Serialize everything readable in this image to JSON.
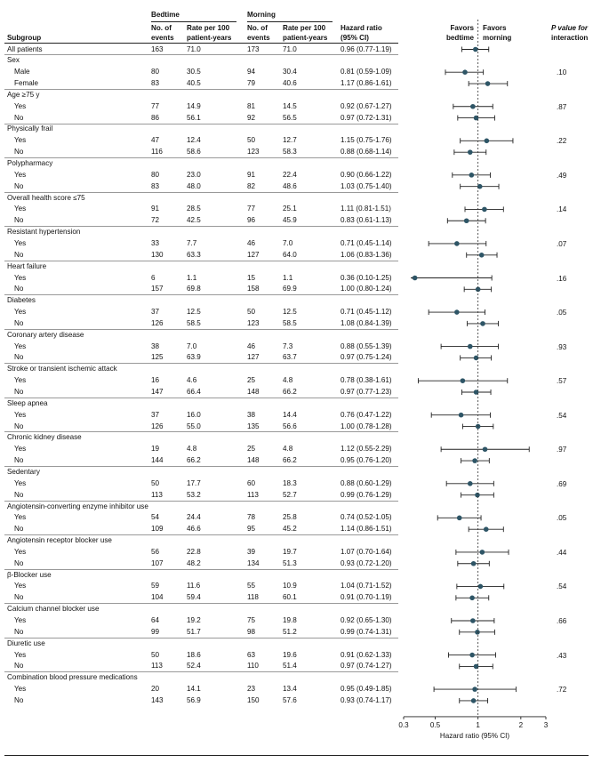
{
  "headers": {
    "bedtime": "Bedtime",
    "morning": "Morning",
    "subgroup": "Subgroup",
    "events_line1": "No. of",
    "events_line2": "events",
    "rate_line1": "Rate per 100",
    "rate_line2": "patient-years",
    "hr_line1": "Hazard ratio",
    "hr_line2": "(95% CI)",
    "favors_bedtime_line1": "Favors",
    "favors_bedtime_line2": "bedtime",
    "favors_morning_line1": "Favors",
    "favors_morning_line2": "morning",
    "p_line1": "P value for",
    "p_line2": "interaction"
  },
  "chart_data": {
    "type": "forest",
    "xlabel": "Hazard ratio (95% CI)",
    "xscale": "log",
    "xlim": [
      0.3,
      3
    ],
    "xticks": [
      "0.3",
      "0.5",
      "1",
      "2",
      "3"
    ],
    "xtick_values": [
      0.3,
      0.5,
      1,
      2,
      3
    ],
    "reference_line": 1,
    "point_color": "#2e5566",
    "rows": [
      {
        "kind": "row",
        "label": "All patients",
        "b_events": "163",
        "b_rate": "71.0",
        "m_events": "173",
        "m_rate": "71.0",
        "hr_text": "0.96 (0.77-1.19)",
        "hr": 0.96,
        "lo": 0.77,
        "hi": 1.19
      },
      {
        "kind": "group",
        "label": "Sex",
        "p": ".10"
      },
      {
        "kind": "row",
        "label": "Male",
        "b_events": "80",
        "b_rate": "30.5",
        "m_events": "94",
        "m_rate": "30.4",
        "hr_text": "0.81 (0.59-1.09)",
        "hr": 0.81,
        "lo": 0.59,
        "hi": 1.09
      },
      {
        "kind": "row",
        "label": "Female",
        "b_events": "83",
        "b_rate": "40.5",
        "m_events": "79",
        "m_rate": "40.6",
        "hr_text": "1.17 (0.86-1.61)",
        "hr": 1.17,
        "lo": 0.86,
        "hi": 1.61
      },
      {
        "kind": "group",
        "label": "Age ≥75 y",
        "p": ".87"
      },
      {
        "kind": "row",
        "label": "Yes",
        "b_events": "77",
        "b_rate": "14.9",
        "m_events": "81",
        "m_rate": "14.5",
        "hr_text": "0.92 (0.67-1.27)",
        "hr": 0.92,
        "lo": 0.67,
        "hi": 1.27
      },
      {
        "kind": "row",
        "label": "No",
        "b_events": "86",
        "b_rate": "56.1",
        "m_events": "92",
        "m_rate": "56.5",
        "hr_text": "0.97 (0.72-1.31)",
        "hr": 0.97,
        "lo": 0.72,
        "hi": 1.31
      },
      {
        "kind": "group",
        "label": "Physically frail",
        "p": ".22"
      },
      {
        "kind": "row",
        "label": "Yes",
        "b_events": "47",
        "b_rate": "12.4",
        "m_events": "50",
        "m_rate": "12.7",
        "hr_text": "1.15 (0.75-1.76)",
        "hr": 1.15,
        "lo": 0.75,
        "hi": 1.76
      },
      {
        "kind": "row",
        "label": "No",
        "b_events": "116",
        "b_rate": "58.6",
        "m_events": "123",
        "m_rate": "58.3",
        "hr_text": "0.88 (0.68-1.14)",
        "hr": 0.88,
        "lo": 0.68,
        "hi": 1.14
      },
      {
        "kind": "group",
        "label": "Polypharmacy",
        "p": ".49"
      },
      {
        "kind": "row",
        "label": "Yes",
        "b_events": "80",
        "b_rate": "23.0",
        "m_events": "91",
        "m_rate": "22.4",
        "hr_text": "0.90 (0.66-1.22)",
        "hr": 0.9,
        "lo": 0.66,
        "hi": 1.22
      },
      {
        "kind": "row",
        "label": "No",
        "b_events": "83",
        "b_rate": "48.0",
        "m_events": "82",
        "m_rate": "48.6",
        "hr_text": "1.03 (0.75-1.40)",
        "hr": 1.03,
        "lo": 0.75,
        "hi": 1.4
      },
      {
        "kind": "group",
        "label": "Overall health score ≤75",
        "p": ".14"
      },
      {
        "kind": "row",
        "label": "Yes",
        "b_events": "91",
        "b_rate": "28.5",
        "m_events": "77",
        "m_rate": "25.1",
        "hr_text": "1.11 (0.81-1.51)",
        "hr": 1.11,
        "lo": 0.81,
        "hi": 1.51
      },
      {
        "kind": "row",
        "label": "No",
        "b_events": "72",
        "b_rate": "42.5",
        "m_events": "96",
        "m_rate": "45.9",
        "hr_text": "0.83 (0.61-1.13)",
        "hr": 0.83,
        "lo": 0.61,
        "hi": 1.13
      },
      {
        "kind": "group",
        "label": "Resistant hypertension",
        "p": ".07"
      },
      {
        "kind": "row",
        "label": "Yes",
        "b_events": "33",
        "b_rate": "7.7",
        "m_events": "46",
        "m_rate": "7.0",
        "hr_text": "0.71 (0.45-1.14)",
        "hr": 0.71,
        "lo": 0.45,
        "hi": 1.14
      },
      {
        "kind": "row",
        "label": "No",
        "b_events": "130",
        "b_rate": "63.3",
        "m_events": "127",
        "m_rate": "64.0",
        "hr_text": "1.06 (0.83-1.36)",
        "hr": 1.06,
        "lo": 0.83,
        "hi": 1.36
      },
      {
        "kind": "group",
        "label": "Heart failure",
        "p": ".16"
      },
      {
        "kind": "row",
        "label": "Yes",
        "b_events": "6",
        "b_rate": "1.1",
        "m_events": "15",
        "m_rate": "1.1",
        "hr_text": "0.36 (0.10-1.25)",
        "hr": 0.36,
        "lo": 0.1,
        "hi": 1.25
      },
      {
        "kind": "row",
        "label": "No",
        "b_events": "157",
        "b_rate": "69.8",
        "m_events": "158",
        "m_rate": "69.9",
        "hr_text": "1.00 (0.80-1.24)",
        "hr": 1.0,
        "lo": 0.8,
        "hi": 1.24
      },
      {
        "kind": "group",
        "label": "Diabetes",
        "p": ".05"
      },
      {
        "kind": "row",
        "label": "Yes",
        "b_events": "37",
        "b_rate": "12.5",
        "m_events": "50",
        "m_rate": "12.5",
        "hr_text": "0.71 (0.45-1.12)",
        "hr": 0.71,
        "lo": 0.45,
        "hi": 1.12
      },
      {
        "kind": "row",
        "label": "No",
        "b_events": "126",
        "b_rate": "58.5",
        "m_events": "123",
        "m_rate": "58.5",
        "hr_text": "1.08 (0.84-1.39)",
        "hr": 1.08,
        "lo": 0.84,
        "hi": 1.39
      },
      {
        "kind": "group",
        "label": "Coronary artery disease",
        "p": ".93"
      },
      {
        "kind": "row",
        "label": "Yes",
        "b_events": "38",
        "b_rate": "7.0",
        "m_events": "46",
        "m_rate": "7.3",
        "hr_text": "0.88 (0.55-1.39)",
        "hr": 0.88,
        "lo": 0.55,
        "hi": 1.39
      },
      {
        "kind": "row",
        "label": "No",
        "b_events": "125",
        "b_rate": "63.9",
        "m_events": "127",
        "m_rate": "63.7",
        "hr_text": "0.97 (0.75-1.24)",
        "hr": 0.97,
        "lo": 0.75,
        "hi": 1.24
      },
      {
        "kind": "group",
        "label": "Stroke or transient ischemic attack",
        "p": ".57"
      },
      {
        "kind": "row",
        "label": "Yes",
        "b_events": "16",
        "b_rate": "4.6",
        "m_events": "25",
        "m_rate": "4.8",
        "hr_text": "0.78 (0.38-1.61)",
        "hr": 0.78,
        "lo": 0.38,
        "hi": 1.61
      },
      {
        "kind": "row",
        "label": "No",
        "b_events": "147",
        "b_rate": "66.4",
        "m_events": "148",
        "m_rate": "66.2",
        "hr_text": "0.97 (0.77-1.23)",
        "hr": 0.97,
        "lo": 0.77,
        "hi": 1.23
      },
      {
        "kind": "group",
        "label": "Sleep apnea",
        "p": ".54"
      },
      {
        "kind": "row",
        "label": "Yes",
        "b_events": "37",
        "b_rate": "16.0",
        "m_events": "38",
        "m_rate": "14.4",
        "hr_text": "0.76 (0.47-1.22)",
        "hr": 0.76,
        "lo": 0.47,
        "hi": 1.22
      },
      {
        "kind": "row",
        "label": "No",
        "b_events": "126",
        "b_rate": "55.0",
        "m_events": "135",
        "m_rate": "56.6",
        "hr_text": "1.00 (0.78-1.28)",
        "hr": 1.0,
        "lo": 0.78,
        "hi": 1.28
      },
      {
        "kind": "group",
        "label": "Chronic kidney disease",
        "p": ".97"
      },
      {
        "kind": "row",
        "label": "Yes",
        "b_events": "19",
        "b_rate": "4.8",
        "m_events": "25",
        "m_rate": "4.8",
        "hr_text": "1.12 (0.55-2.29)",
        "hr": 1.12,
        "lo": 0.55,
        "hi": 2.29
      },
      {
        "kind": "row",
        "label": "No",
        "b_events": "144",
        "b_rate": "66.2",
        "m_events": "148",
        "m_rate": "66.2",
        "hr_text": "0.95 (0.76-1.20)",
        "hr": 0.95,
        "lo": 0.76,
        "hi": 1.2
      },
      {
        "kind": "group",
        "label": "Sedentary",
        "p": ".69"
      },
      {
        "kind": "row",
        "label": "Yes",
        "b_events": "50",
        "b_rate": "17.7",
        "m_events": "60",
        "m_rate": "18.3",
        "hr_text": "0.88 (0.60-1.29)",
        "hr": 0.88,
        "lo": 0.6,
        "hi": 1.29
      },
      {
        "kind": "row",
        "label": "No",
        "b_events": "113",
        "b_rate": "53.2",
        "m_events": "113",
        "m_rate": "52.7",
        "hr_text": "0.99 (0.76-1.29)",
        "hr": 0.99,
        "lo": 0.76,
        "hi": 1.29
      },
      {
        "kind": "group",
        "label": "Angiotensin-converting enzyme inhibitor use",
        "p": ".05"
      },
      {
        "kind": "row",
        "label": "Yes",
        "b_events": "54",
        "b_rate": "24.4",
        "m_events": "78",
        "m_rate": "25.8",
        "hr_text": "0.74 (0.52-1.05)",
        "hr": 0.74,
        "lo": 0.52,
        "hi": 1.05
      },
      {
        "kind": "row",
        "label": "No",
        "b_events": "109",
        "b_rate": "46.6",
        "m_events": "95",
        "m_rate": "45.2",
        "hr_text": "1.14 (0.86-1.51)",
        "hr": 1.14,
        "lo": 0.86,
        "hi": 1.51
      },
      {
        "kind": "group",
        "label": "Angiotensin receptor blocker use",
        "p": ".44"
      },
      {
        "kind": "row",
        "label": "Yes",
        "b_events": "56",
        "b_rate": "22.8",
        "m_events": "39",
        "m_rate": "19.7",
        "hr_text": "1.07 (0.70-1.64)",
        "hr": 1.07,
        "lo": 0.7,
        "hi": 1.64
      },
      {
        "kind": "row",
        "label": "No",
        "b_events": "107",
        "b_rate": "48.2",
        "m_events": "134",
        "m_rate": "51.3",
        "hr_text": "0.93 (0.72-1.20)",
        "hr": 0.93,
        "lo": 0.72,
        "hi": 1.2
      },
      {
        "kind": "group",
        "label": "β-Blocker use",
        "p": ".54"
      },
      {
        "kind": "row",
        "label": "Yes",
        "b_events": "59",
        "b_rate": "11.6",
        "m_events": "55",
        "m_rate": "10.9",
        "hr_text": "1.04 (0.71-1.52)",
        "hr": 1.04,
        "lo": 0.71,
        "hi": 1.52
      },
      {
        "kind": "row",
        "label": "No",
        "b_events": "104",
        "b_rate": "59.4",
        "m_events": "118",
        "m_rate": "60.1",
        "hr_text": "0.91 (0.70-1.19)",
        "hr": 0.91,
        "lo": 0.7,
        "hi": 1.19
      },
      {
        "kind": "group",
        "label": "Calcium channel blocker use",
        "p": ".66"
      },
      {
        "kind": "row",
        "label": "Yes",
        "b_events": "64",
        "b_rate": "19.2",
        "m_events": "75",
        "m_rate": "19.8",
        "hr_text": "0.92 (0.65-1.30)",
        "hr": 0.92,
        "lo": 0.65,
        "hi": 1.3
      },
      {
        "kind": "row",
        "label": "No",
        "b_events": "99",
        "b_rate": "51.7",
        "m_events": "98",
        "m_rate": "51.2",
        "hr_text": "0.99 (0.74-1.31)",
        "hr": 0.99,
        "lo": 0.74,
        "hi": 1.31
      },
      {
        "kind": "group",
        "label": "Diuretic use",
        "p": ".43"
      },
      {
        "kind": "row",
        "label": "Yes",
        "b_events": "50",
        "b_rate": "18.6",
        "m_events": "63",
        "m_rate": "19.6",
        "hr_text": "0.91 (0.62-1.33)",
        "hr": 0.91,
        "lo": 0.62,
        "hi": 1.33
      },
      {
        "kind": "row",
        "label": "No",
        "b_events": "113",
        "b_rate": "52.4",
        "m_events": "110",
        "m_rate": "51.4",
        "hr_text": "0.97 (0.74-1.27)",
        "hr": 0.97,
        "lo": 0.74,
        "hi": 1.27
      },
      {
        "kind": "group",
        "label": "Combination blood pressure medications",
        "p": ".72"
      },
      {
        "kind": "row",
        "label": "Yes",
        "b_events": "20",
        "b_rate": "14.1",
        "m_events": "23",
        "m_rate": "13.4",
        "hr_text": "0.95 (0.49-1.85)",
        "hr": 0.95,
        "lo": 0.49,
        "hi": 1.85
      },
      {
        "kind": "row",
        "label": "No",
        "b_events": "143",
        "b_rate": "56.9",
        "m_events": "150",
        "m_rate": "57.6",
        "hr_text": "0.93 (0.74-1.17)",
        "hr": 0.93,
        "lo": 0.74,
        "hi": 1.17
      }
    ]
  }
}
